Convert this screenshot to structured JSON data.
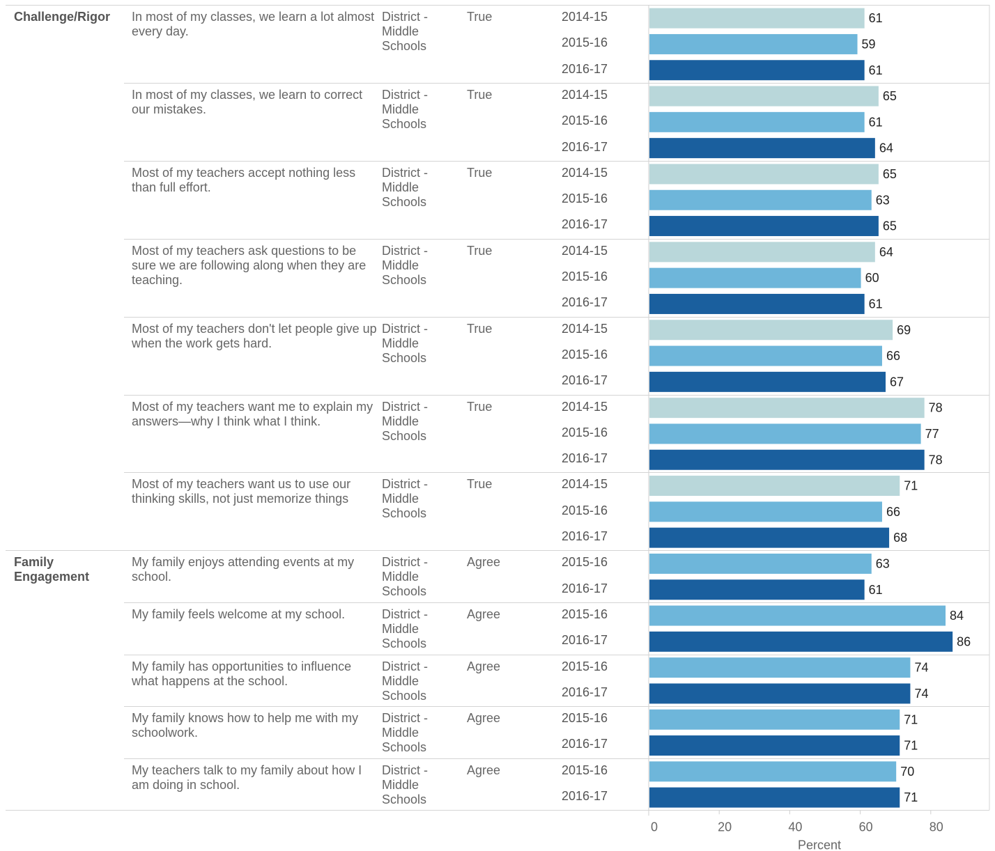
{
  "axis": {
    "xlabel": "Percent",
    "ticks": [
      0,
      20,
      40,
      60,
      80
    ],
    "xlim": [
      0,
      96
    ]
  },
  "colors": {
    "2014-15": "#b9d7da",
    "2015-16": "#6eb6da",
    "2016-17": "#1a5f9e"
  },
  "chart_data": {
    "type": "bar",
    "orientation": "horizontal",
    "xlabel": "Percent",
    "xlim": [
      0,
      96
    ],
    "grid": false,
    "groups": [
      {
        "category": "Challenge/Rigor",
        "questions": [
          {
            "text": "In most of my classes, we learn a lot almost every day.",
            "district": "District - Middle Schools",
            "response": "True",
            "bars": [
              {
                "year": "2014-15",
                "value": 61
              },
              {
                "year": "2015-16",
                "value": 59
              },
              {
                "year": "2016-17",
                "value": 61
              }
            ]
          },
          {
            "text": "In most of my classes, we learn to correct our mistakes.",
            "district": "District - Middle Schools",
            "response": "True",
            "bars": [
              {
                "year": "2014-15",
                "value": 65
              },
              {
                "year": "2015-16",
                "value": 61
              },
              {
                "year": "2016-17",
                "value": 64
              }
            ]
          },
          {
            "text": "Most of my teachers accept nothing less than full effort.",
            "district": "District - Middle Schools",
            "response": "True",
            "bars": [
              {
                "year": "2014-15",
                "value": 65
              },
              {
                "year": "2015-16",
                "value": 63
              },
              {
                "year": "2016-17",
                "value": 65
              }
            ]
          },
          {
            "text": "Most of my teachers ask questions to be sure we are following along when they are teaching.",
            "district": "District - Middle Schools",
            "response": "True",
            "bars": [
              {
                "year": "2014-15",
                "value": 64
              },
              {
                "year": "2015-16",
                "value": 60
              },
              {
                "year": "2016-17",
                "value": 61
              }
            ]
          },
          {
            "text": "Most of my teachers don't let people give up when the work gets hard.",
            "district": "District - Middle Schools",
            "response": "True",
            "bars": [
              {
                "year": "2014-15",
                "value": 69
              },
              {
                "year": "2015-16",
                "value": 66
              },
              {
                "year": "2016-17",
                "value": 67
              }
            ]
          },
          {
            "text": "Most of my teachers want me to explain my answers—why I think what I think.",
            "district": "District - Middle Schools",
            "response": "True",
            "bars": [
              {
                "year": "2014-15",
                "value": 78
              },
              {
                "year": "2015-16",
                "value": 77
              },
              {
                "year": "2016-17",
                "value": 78
              }
            ]
          },
          {
            "text": "Most of my teachers want us to use our thinking skills, not just memorize things",
            "district": "District - Middle Schools",
            "response": "True",
            "bars": [
              {
                "year": "2014-15",
                "value": 71
              },
              {
                "year": "2015-16",
                "value": 66
              },
              {
                "year": "2016-17",
                "value": 68
              }
            ]
          }
        ]
      },
      {
        "category": "Family Engagement",
        "questions": [
          {
            "text": "My family enjoys attending events at my school.",
            "district": "District - Middle Schools",
            "response": "Agree",
            "bars": [
              {
                "year": "2015-16",
                "value": 63
              },
              {
                "year": "2016-17",
                "value": 61
              }
            ]
          },
          {
            "text": "My family feels welcome at my school.",
            "district": "District - Middle Schools",
            "response": "Agree",
            "bars": [
              {
                "year": "2015-16",
                "value": 84
              },
              {
                "year": "2016-17",
                "value": 86
              }
            ]
          },
          {
            "text": "My family has opportunities to influence what happens at the school.",
            "district": "District - Middle Schools",
            "response": "Agree",
            "bars": [
              {
                "year": "2015-16",
                "value": 74
              },
              {
                "year": "2016-17",
                "value": 74
              }
            ]
          },
          {
            "text": "My family knows how to help me with my schoolwork.",
            "district": "District - Middle Schools",
            "response": "Agree",
            "bars": [
              {
                "year": "2015-16",
                "value": 71
              },
              {
                "year": "2016-17",
                "value": 71
              }
            ]
          },
          {
            "text": "My teachers talk to my family about how I am doing in school.",
            "district": "District - Middle Schools",
            "response": "Agree",
            "bars": [
              {
                "year": "2015-16",
                "value": 70
              },
              {
                "year": "2016-17",
                "value": 71
              }
            ]
          }
        ]
      }
    ]
  }
}
